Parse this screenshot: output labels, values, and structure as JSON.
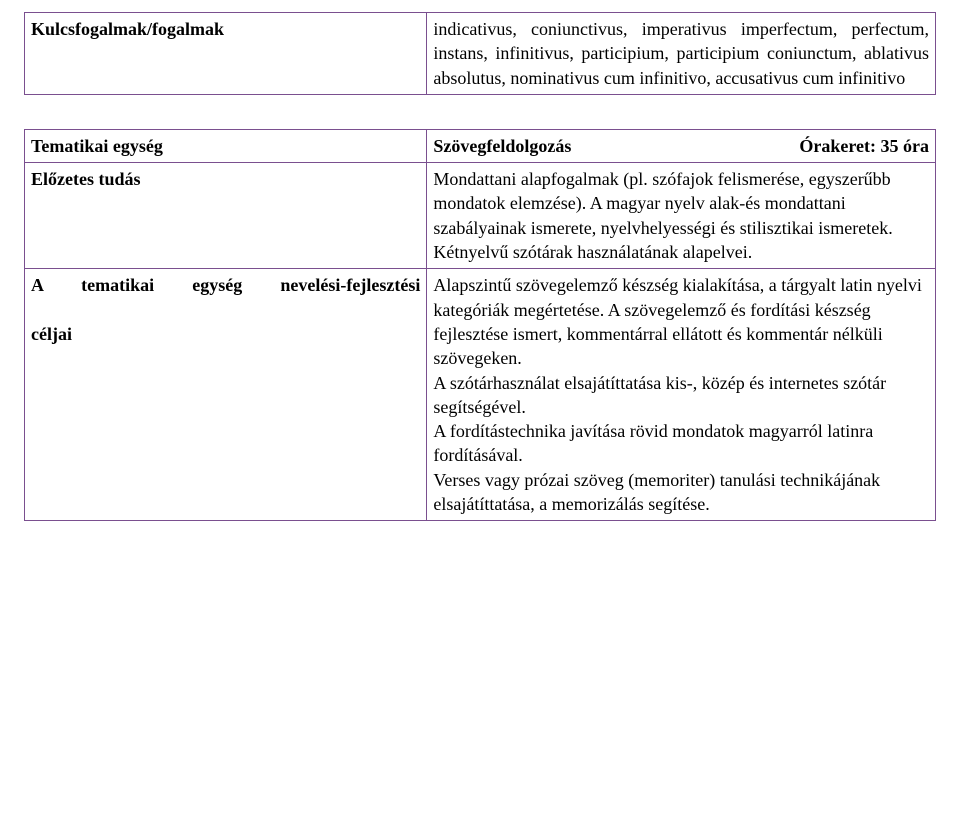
{
  "table1": {
    "left_label": "Kulcsfogalmak/fogalmak",
    "right_text": "indicativus, coniunctivus, imperativus imperfectum, perfectum, instans, infinitivus, participium, participium coniunctum, ablativus absolutus, nominativus cum infinitivo, accusativus cum infinitivo"
  },
  "table2": {
    "row1": {
      "left": "Tematikai egység",
      "right_title": "Szövegfeldolgozás",
      "right_time": "Órakeret: 35 óra"
    },
    "row2": {
      "left": "Előzetes  tudás",
      "right": "Mondattani alapfogalmak (pl. szófajok felismerése, egyszerűbb mondatok elemzése). A magyar nyelv alak-és mondattani szabályainak ismerete, nyelvhelyességi és stilisztikai ismeretek.\nKétnyelvű szótárak használatának alapelvei."
    },
    "row3": {
      "left_line1": "A tematikai egység nevelési-fejlesztési",
      "left_line2": "céljai",
      "right": "Alapszintű szövegelemző készség kialakítása, a tárgyalt latin nyelvi kategóriák megértetése. A szövegelemző és fordítási készség fejlesztése ismert, kommentárral ellátott és kommentár nélküli szövegeken.\nA szótárhasználat elsajátíttatása kis-, közép és internetes szótár segítségével.\nA fordítástechnika javítása rövid mondatok magyarról latinra fordításával.\nVerses vagy prózai szöveg (memoriter) tanulási technikájának elsajátíttatása, a memorizálás segítése."
    }
  }
}
